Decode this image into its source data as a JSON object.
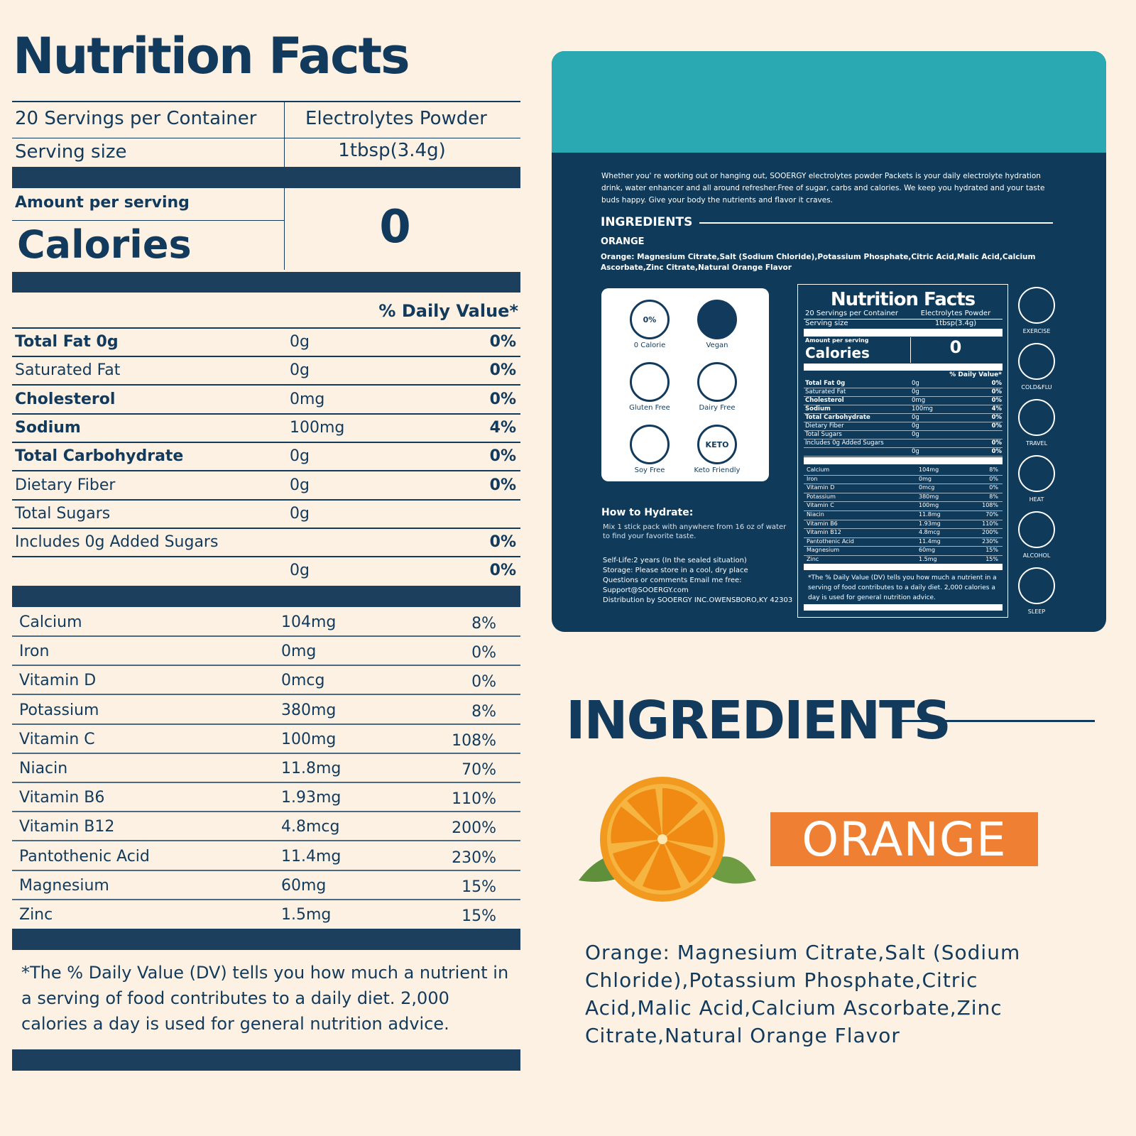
{
  "title": "Nutrition Facts",
  "servings": "20 Servings per Container",
  "product": "Electrolytes Powder",
  "serving_size_label": "Serving size",
  "serving_size": "1tbsp(3.4g)",
  "amount_per_serving": "Amount per serving",
  "calories_label": "Calories",
  "calories": 0,
  "dv_header": "% Daily Value*",
  "nutrients": [
    {
      "name": "Total Fat 0g",
      "amount": "0g",
      "dv": "0%",
      "bold": true
    },
    {
      "name": "Saturated Fat",
      "amount": "0g",
      "dv": "0%",
      "bold": false
    },
    {
      "name": "Cholesterol",
      "amount": "0mg",
      "dv": "0%",
      "bold": true
    },
    {
      "name": "Sodium",
      "amount": "100mg",
      "dv": "4%",
      "bold": true
    },
    {
      "name": "Total Carbohydrate",
      "amount": "0g",
      "dv": "0%",
      "bold": true
    },
    {
      "name": "Dietary Fiber",
      "amount": "0g",
      "dv": "0%",
      "bold": false
    },
    {
      "name": "Total Sugars",
      "amount": "0g",
      "bold": false
    },
    {
      "name": "Includes 0g Added Sugars",
      "dv": "0%",
      "bold": false
    },
    {
      "amount": "0g",
      "dv": "0%",
      "bold": false
    }
  ],
  "minerals": [
    {
      "name": "Calcium",
      "amount": "104mg",
      "dv": "8%"
    },
    {
      "name": "Iron",
      "amount": "0mg",
      "dv": "0%"
    },
    {
      "name": "Vitamin D",
      "amount": "0mcg",
      "dv": "0%"
    },
    {
      "name": "Potassium",
      "amount": "380mg",
      "dv": "8%"
    },
    {
      "name": "Vitamin C",
      "amount": "100mg",
      "dv": "108%"
    },
    {
      "name": "Niacin",
      "amount": "11.8mg",
      "dv": "70%"
    },
    {
      "name": "Vitamin B6",
      "amount": "1.93mg",
      "dv": "110%"
    },
    {
      "name": "Vitamin B12",
      "amount": "4.8mcg",
      "dv": "200%"
    },
    {
      "name": "Pantothenic Acid",
      "amount": "11.4mg",
      "dv": "230%"
    },
    {
      "name": "Magnesium",
      "amount": "60mg",
      "dv": "15%"
    },
    {
      "name": "Zinc",
      "amount": "1.5mg",
      "dv": "15%"
    }
  ],
  "footnote": "*The % Daily Value (DV) tells you how much a nutrient in a serving of food contributes to a daily diet. 2,000 calories a day is used for general nutrition advice.",
  "package": {
    "intro": "Whether you' re working out or hanging out, SOOERGY electrolytes powder Packets is your daily electrolyte hydration drink, water enhancer and all around refresher.Free of sugar, carbs and calories. We keep you hydrated and your taste buds happy. Give your body the nutrients and flavor it craves.",
    "ingredients_heading": "INGREDIENTS",
    "flavor": "ORANGE",
    "ingredients": "Orange: Magnesium Citrate,Salt (Sodium Chloride),Potassium Phosphate,Citric Acid,Malic Acid,Calcium Ascorbate,Zinc Citrate,Natural Orange Flavor",
    "badges": [
      {
        "label": "0 Calorie",
        "icon_text": "0%"
      },
      {
        "label": "Vegan"
      },
      {
        "label": "Gluten Free"
      },
      {
        "label": "Dairy Free"
      },
      {
        "label": "Soy Free"
      },
      {
        "label": "Keto Friendly",
        "icon_text": "KETO"
      }
    ],
    "how_to_title": "How to Hydrate:",
    "how_to_text": "Mix 1 stick pack with anywhere from 16 oz of water to find your favorite taste.",
    "info": [
      "Self-Life:2 years (In the sealed situation)",
      "Storage: Please store in a cool, dry place",
      "Questions or comments Email me free:",
      "Support@SOOERGY.com",
      "Distribution by SOOERGY INC.OWENSBORO,KY 42303"
    ],
    "uses": [
      "EXERCISE",
      "COLD&FLU",
      "TRAVEL",
      "HEAT",
      "ALCOHOL",
      "SLEEP"
    ]
  },
  "ingredients_heading": "INGREDIENTS",
  "flavor": "ORANGE",
  "ingredients_text": "Orange: Magnesium Citrate,Salt (Sodium Chloride),Potassium Phosphate,Citric Acid,Malic Acid,Calcium Ascorbate,Zinc Citrate,Natural Orange Flavor"
}
